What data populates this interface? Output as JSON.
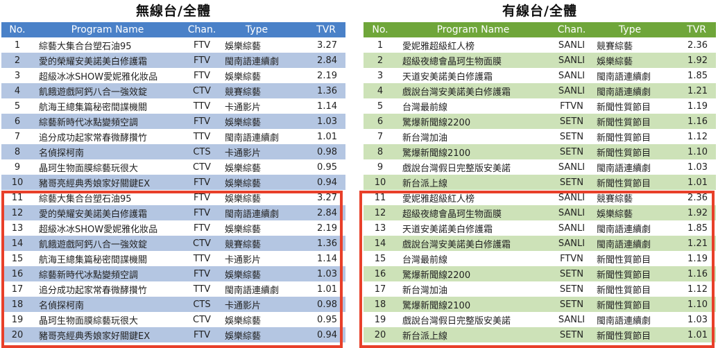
{
  "left_panel": {
    "title": "無線台/全體",
    "headers": {
      "no": "No.",
      "name": "Program Name",
      "chan": "Chan.",
      "type": "Type",
      "tvr": "TVR"
    },
    "rows": [
      {
        "no": "1",
        "name": "綜藝大集合台塑石油95",
        "chan": "FTV",
        "type": "娛樂綜藝",
        "tvr": "3.27"
      },
      {
        "no": "2",
        "name": "愛的榮耀安美諾美白修護霜",
        "chan": "FTV",
        "type": "閩南語連續劇",
        "tvr": "2.84"
      },
      {
        "no": "3",
        "name": "超級冰冰SHOW愛妮雅化妝品",
        "chan": "FTV",
        "type": "娛樂綜藝",
        "tvr": "2.19"
      },
      {
        "no": "4",
        "name": "飢餓遊戲阿鈣八合一強效錠",
        "chan": "CTV",
        "type": "競賽綜藝",
        "tvr": "1.36"
      },
      {
        "no": "5",
        "name": "航海王總集篇秘密間諜機關",
        "chan": "TTV",
        "type": "卡通影片",
        "tvr": "1.14"
      },
      {
        "no": "6",
        "name": "綜藝新時代冰點變頻空調",
        "chan": "FTV",
        "type": "娛樂綜藝",
        "tvr": "1.03"
      },
      {
        "no": "7",
        "name": "追分成功起家常春微酵攢竹",
        "chan": "TTV",
        "type": "閩南語連續劇",
        "tvr": "1.01"
      },
      {
        "no": "8",
        "name": "名偵探柯南",
        "chan": "CTS",
        "type": "卡通影片",
        "tvr": "0.98"
      },
      {
        "no": "9",
        "name": "晶珂生物面膜綜藝玩很大",
        "chan": "CTV",
        "type": "娛樂綜藝",
        "tvr": "0.95"
      },
      {
        "no": "10",
        "name": "豬哥亮經典秀娘家好關鍵EX",
        "chan": "FTV",
        "type": "娛樂綜藝",
        "tvr": "0.94"
      },
      {
        "no": "11",
        "name": "綜藝大集合台塑石油95",
        "chan": "FTV",
        "type": "娛樂綜藝",
        "tvr": "3.27"
      },
      {
        "no": "12",
        "name": "愛的榮耀安美諾美白修護霜",
        "chan": "FTV",
        "type": "閩南語連續劇",
        "tvr": "2.84"
      },
      {
        "no": "13",
        "name": "超級冰冰SHOW愛妮雅化妝品",
        "chan": "FTV",
        "type": "娛樂綜藝",
        "tvr": "2.19"
      },
      {
        "no": "14",
        "name": "飢餓遊戲阿鈣八合一強效錠",
        "chan": "CTV",
        "type": "競賽綜藝",
        "tvr": "1.36"
      },
      {
        "no": "15",
        "name": "航海王總集篇秘密間諜機關",
        "chan": "TTV",
        "type": "卡通影片",
        "tvr": "1.14"
      },
      {
        "no": "16",
        "name": "綜藝新時代冰點變頻空調",
        "chan": "FTV",
        "type": "娛樂綜藝",
        "tvr": "1.03"
      },
      {
        "no": "17",
        "name": "追分成功起家常春微酵攢竹",
        "chan": "TTV",
        "type": "閩南語連續劇",
        "tvr": "1.01"
      },
      {
        "no": "18",
        "name": "名偵探柯南",
        "chan": "CTS",
        "type": "卡通影片",
        "tvr": "0.98"
      },
      {
        "no": "19",
        "name": "晶珂生物面膜綜藝玩很大",
        "chan": "CTV",
        "type": "娛樂綜藝",
        "tvr": "0.95"
      },
      {
        "no": "20",
        "name": "豬哥亮經典秀娘家好關鍵EX",
        "chan": "FTV",
        "type": "娛樂綜藝",
        "tvr": "0.94"
      }
    ]
  },
  "right_panel": {
    "title": "有線台/全體",
    "headers": {
      "no": "No.",
      "name": "Program Name",
      "chan": "Chan.",
      "type": "Type",
      "tvr": "TVR"
    },
    "rows": [
      {
        "no": "1",
        "name": "愛妮雅超級紅人榜",
        "chan": "SANLI",
        "type": "競賽綜藝",
        "tvr": "2.36"
      },
      {
        "no": "2",
        "name": "超級夜總會晶珂生物面膜",
        "chan": "SANLI",
        "type": "娛樂綜藝",
        "tvr": "1.92"
      },
      {
        "no": "3",
        "name": "天道安美諾美白修護霜",
        "chan": "SANLI",
        "type": "閩南語連續劇",
        "tvr": "1.85"
      },
      {
        "no": "4",
        "name": "戲說台灣安美諾美白修護霜",
        "chan": "SANLI",
        "type": "閩南語連續劇",
        "tvr": "1.21"
      },
      {
        "no": "5",
        "name": "台灣最前線",
        "chan": "FTVN",
        "type": "新聞性質節目",
        "tvr": "1.19"
      },
      {
        "no": "6",
        "name": "驚爆新聞線2200",
        "chan": "SETN",
        "type": "新聞性質節目",
        "tvr": "1.16"
      },
      {
        "no": "7",
        "name": "新台灣加油",
        "chan": "SETN",
        "type": "新聞性質節目",
        "tvr": "1.12"
      },
      {
        "no": "8",
        "name": "驚爆新聞線2100",
        "chan": "SETN",
        "type": "新聞性質節目",
        "tvr": "1.10"
      },
      {
        "no": "9",
        "name": "戲說台灣假日完整版安美諾",
        "chan": "SANLI",
        "type": "閩南語連續劇",
        "tvr": "1.03"
      },
      {
        "no": "10",
        "name": "新台派上線",
        "chan": "SETN",
        "type": "新聞性質節目",
        "tvr": "1.01"
      },
      {
        "no": "11",
        "name": "愛妮雅超級紅人榜",
        "chan": "SANLI",
        "type": "競賽綜藝",
        "tvr": "2.36"
      },
      {
        "no": "12",
        "name": "超級夜總會晶珂生物面膜",
        "chan": "SANLI",
        "type": "娛樂綜藝",
        "tvr": "1.92"
      },
      {
        "no": "13",
        "name": "天道安美諾美白修護霜",
        "chan": "SANLI",
        "type": "閩南語連續劇",
        "tvr": "1.85"
      },
      {
        "no": "14",
        "name": "戲說台灣安美諾美白修護霜",
        "chan": "SANLI",
        "type": "閩南語連續劇",
        "tvr": "1.21"
      },
      {
        "no": "15",
        "name": "台灣最前線",
        "chan": "FTVN",
        "type": "新聞性質節目",
        "tvr": "1.19"
      },
      {
        "no": "16",
        "name": "驚爆新聞線2200",
        "chan": "SETN",
        "type": "新聞性質節目",
        "tvr": "1.16"
      },
      {
        "no": "17",
        "name": "新台灣加油",
        "chan": "SETN",
        "type": "新聞性質節目",
        "tvr": "1.12"
      },
      {
        "no": "18",
        "name": "驚爆新聞線2100",
        "chan": "SETN",
        "type": "新聞性質節目",
        "tvr": "1.10"
      },
      {
        "no": "19",
        "name": "戲說台灣假日完整版安美諾",
        "chan": "SANLI",
        "type": "閩南語連續劇",
        "tvr": "1.03"
      },
      {
        "no": "20",
        "name": "新台派上線",
        "chan": "SETN",
        "type": "新聞性質節目",
        "tvr": "1.01"
      }
    ]
  },
  "colors": {
    "left_header": "#4a81c8",
    "left_alt_row": "#b4c6e2",
    "right_header": "#6fa63a",
    "right_alt_row": "#cde2b8",
    "highlight_border": "#e8402a"
  }
}
